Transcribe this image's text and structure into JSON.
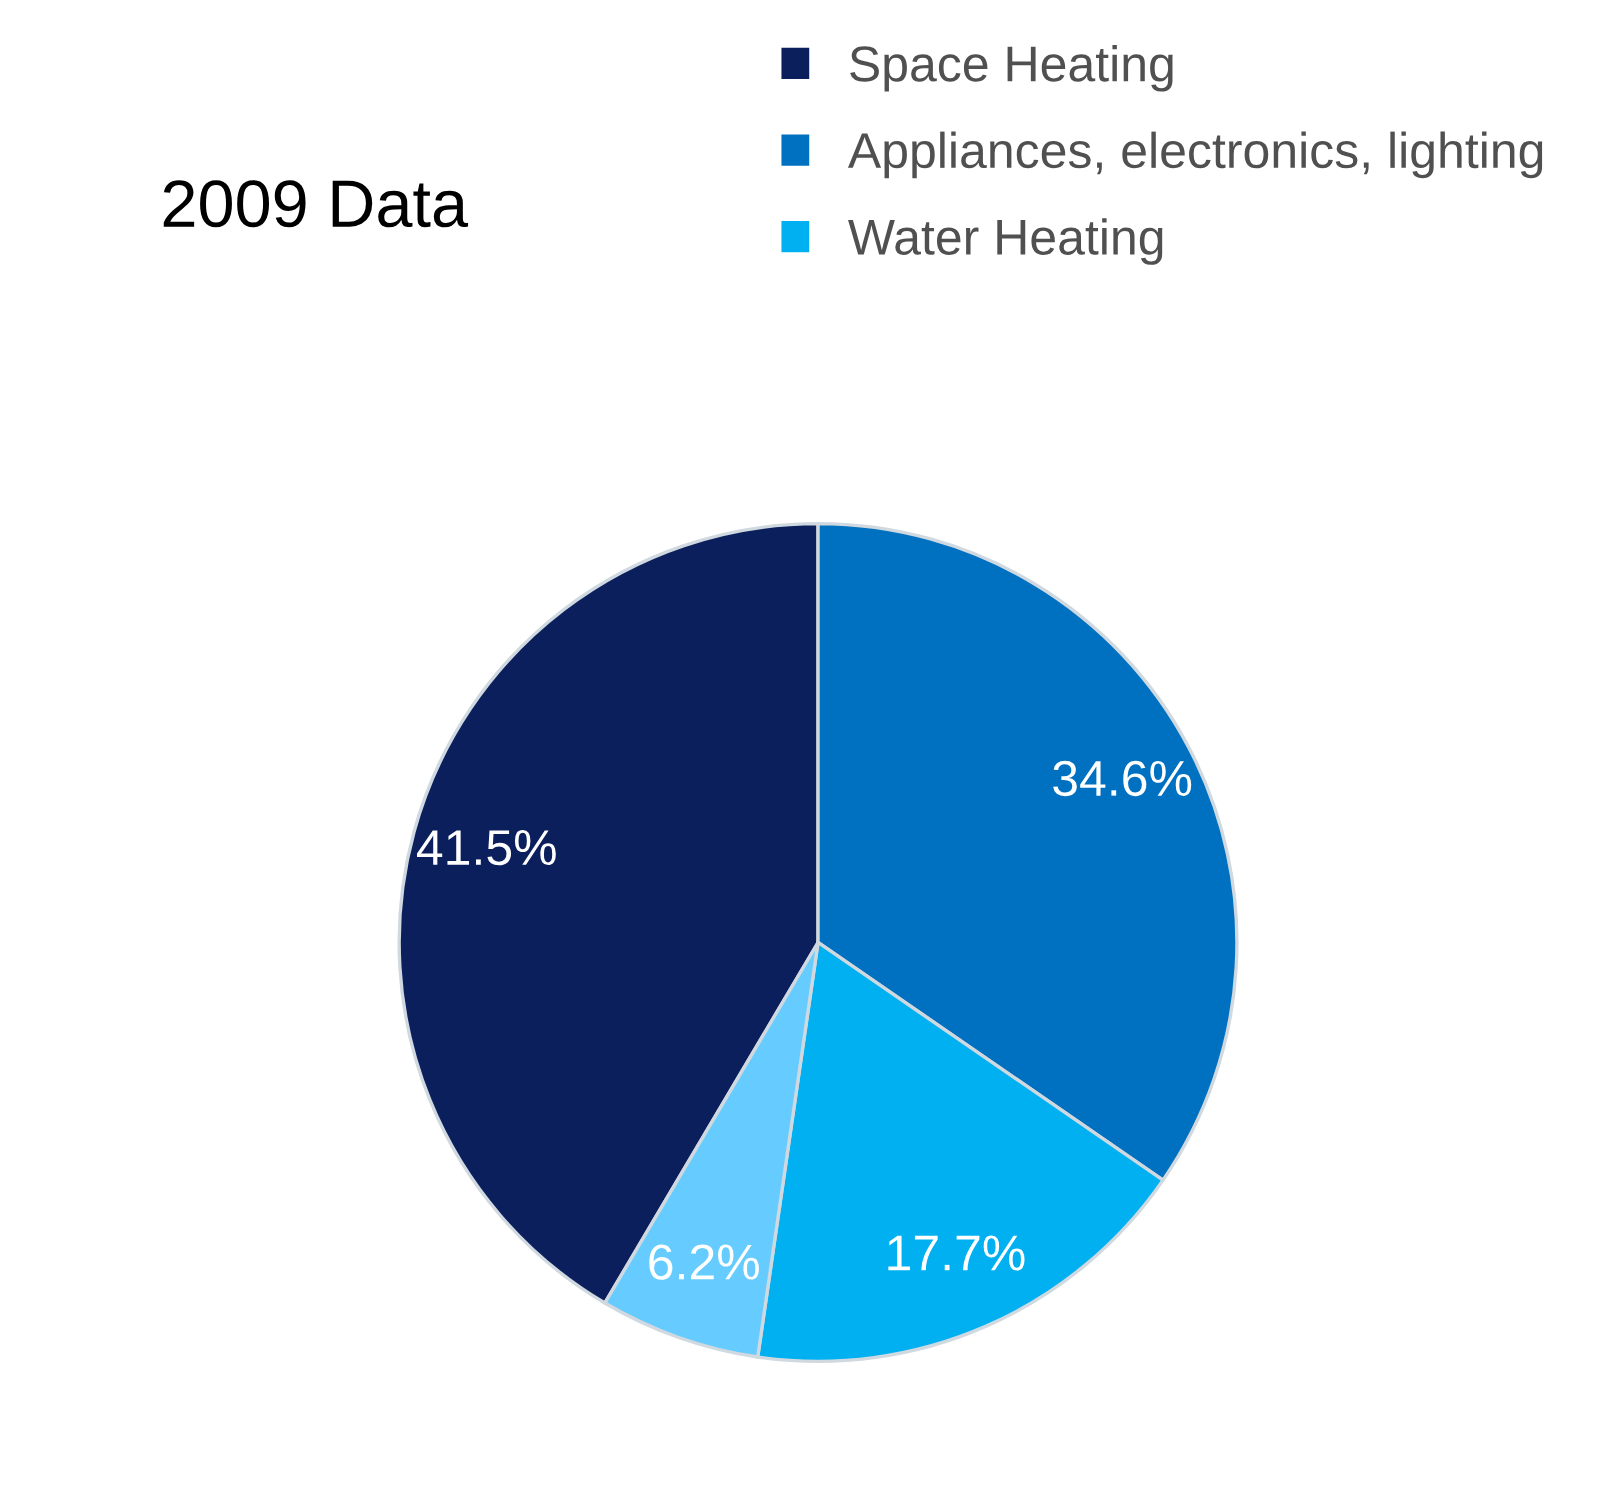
{
  "chart_data": {
    "type": "pie",
    "title": "2009 Data",
    "categories": [
      "Space Heating",
      "Appliances, electronics, lighting",
      "Water Heating",
      null
    ],
    "values": [
      41.5,
      34.6,
      17.7,
      6.2
    ],
    "colors": [
      "#0b1f5c",
      "#0070c0",
      "#00b0f0",
      "#66ccff"
    ],
    "value_labels": [
      "41.5%",
      "34.6%",
      "17.7%",
      "6.2%"
    ],
    "legend": "top right"
  }
}
